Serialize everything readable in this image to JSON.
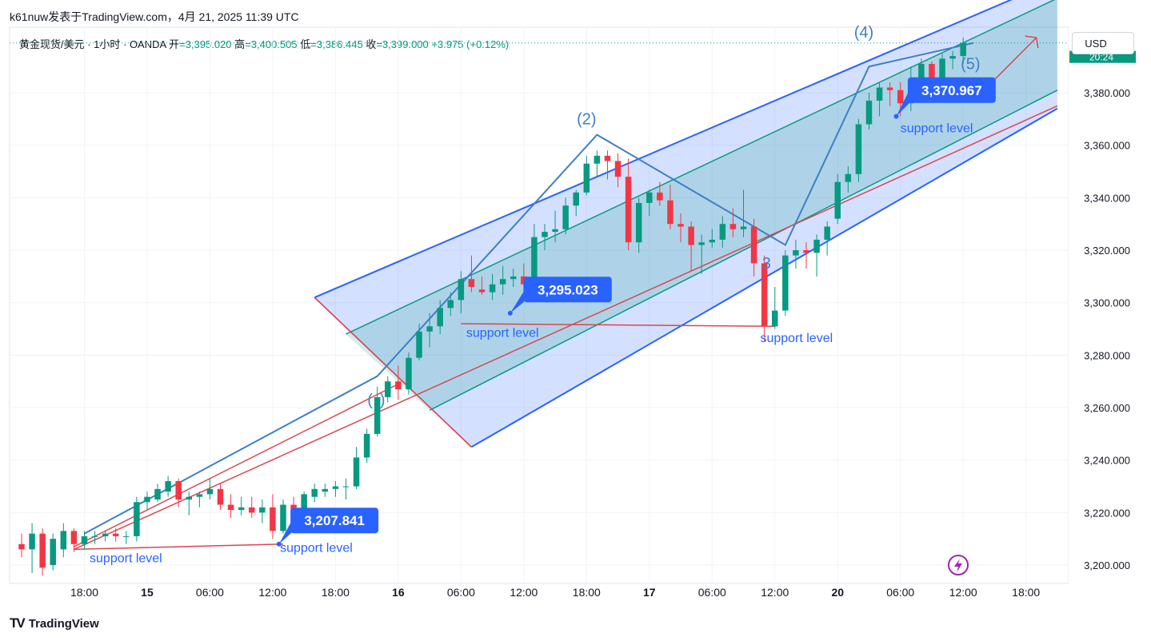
{
  "header": {
    "text": "k61nuw发表于TradingView.com，4月 21, 2025 11:39 UTC"
  },
  "ohlc": {
    "symbol": "黄金现货/美元 · 1小时 · OANDA",
    "open_label": "开",
    "open": "=3,395.020",
    "high_label": "高",
    "high": "=3,400.505",
    "low_label": "低",
    "low": "=3,386.445",
    "close_label": "收",
    "close": "=3,399.000",
    "change": "+3.975 (+0.12%)"
  },
  "currency": "USD",
  "last_price_tag": "20:24",
  "footer": {
    "brand": "TradingView"
  },
  "colors": {
    "up": "#089981",
    "down": "#f23645",
    "channel_outer": "#2962ff",
    "channel_inner": "#089981",
    "wave": "#3d7fc4",
    "trend": "#d84652",
    "callout": "#2962ff"
  },
  "chart_data": {
    "type": "candlestick",
    "y_ticks": [
      3200,
      3220,
      3240,
      3260,
      3280,
      3300,
      3320,
      3340,
      3360,
      3380
    ],
    "y_tick_labels": [
      "3,200.000",
      "3,220.000",
      "3,240.000",
      "3,260.000",
      "3,280.000",
      "3,300.000",
      "3,320.000",
      "3,340.000",
      "3,360.000",
      "3,380.000"
    ],
    "ylim": [
      3193,
      3405
    ],
    "x_ticks": [
      {
        "label": "18:00",
        "bold": false,
        "pos": 6
      },
      {
        "label": "15",
        "bold": true,
        "pos": 12
      },
      {
        "label": "06:00",
        "bold": false,
        "pos": 18
      },
      {
        "label": "12:00",
        "bold": false,
        "pos": 24
      },
      {
        "label": "18:00",
        "bold": false,
        "pos": 30
      },
      {
        "label": "16",
        "bold": true,
        "pos": 36
      },
      {
        "label": "06:00",
        "bold": false,
        "pos": 42
      },
      {
        "label": "12:00",
        "bold": false,
        "pos": 48
      },
      {
        "label": "18:00",
        "bold": false,
        "pos": 54
      },
      {
        "label": "17",
        "bold": true,
        "pos": 60
      },
      {
        "label": "06:00",
        "bold": false,
        "pos": 66
      },
      {
        "label": "12:00",
        "bold": false,
        "pos": 72
      },
      {
        "label": "20",
        "bold": true,
        "pos": 78
      },
      {
        "label": "06:00",
        "bold": false,
        "pos": 84
      },
      {
        "label": "12:00",
        "bold": false,
        "pos": 90
      },
      {
        "label": "18:00",
        "bold": false,
        "pos": 96
      }
    ],
    "candles": [
      [
        3208,
        3212,
        3203,
        3206
      ],
      [
        3206,
        3216,
        3197,
        3212
      ],
      [
        3212,
        3214,
        3196,
        3199
      ],
      [
        3200,
        3212,
        3198,
        3210
      ],
      [
        3206,
        3216,
        3203,
        3213
      ],
      [
        3213,
        3214,
        3205,
        3208
      ],
      [
        3208,
        3213,
        3206,
        3211
      ],
      [
        3211,
        3213,
        3208,
        3211
      ],
      [
        3211,
        3213,
        3209,
        3212
      ],
      [
        3212,
        3214,
        3209,
        3211
      ],
      [
        3211,
        3213,
        3208,
        3211
      ],
      [
        3211,
        3226,
        3209,
        3224
      ],
      [
        3224,
        3228,
        3221,
        3226
      ],
      [
        3225,
        3231,
        3224,
        3229
      ],
      [
        3228,
        3234,
        3226,
        3232
      ],
      [
        3232,
        3233,
        3222,
        3225
      ],
      [
        3225,
        3228,
        3219,
        3226
      ],
      [
        3226,
        3228,
        3222,
        3227
      ],
      [
        3227,
        3233,
        3225,
        3229
      ],
      [
        3229,
        3231,
        3221,
        3223
      ],
      [
        3223,
        3227,
        3218,
        3221
      ],
      [
        3221,
        3226,
        3219,
        3222
      ],
      [
        3222,
        3226,
        3218,
        3220
      ],
      [
        3220,
        3225,
        3216,
        3222
      ],
      [
        3222,
        3227,
        3210,
        3213
      ],
      [
        3213,
        3225,
        3212,
        3223
      ],
      [
        3223,
        3226,
        3215,
        3220
      ],
      [
        3221,
        3228,
        3218,
        3227
      ],
      [
        3226,
        3231,
        3224,
        3229
      ],
      [
        3228,
        3231,
        3226,
        3229
      ],
      [
        3229,
        3232,
        3226,
        3230
      ],
      [
        3230,
        3233,
        3225,
        3230
      ],
      [
        3230,
        3245,
        3229,
        3241
      ],
      [
        3241,
        3252,
        3239,
        3250
      ],
      [
        3250,
        3268,
        3249,
        3264
      ],
      [
        3264,
        3272,
        3262,
        3270
      ],
      [
        3270,
        3276,
        3263,
        3267
      ],
      [
        3267,
        3281,
        3265,
        3279
      ],
      [
        3279,
        3292,
        3278,
        3289
      ],
      [
        3289,
        3296,
        3283,
        3291
      ],
      [
        3291,
        3301,
        3288,
        3298
      ],
      [
        3298,
        3304,
        3295,
        3301
      ],
      [
        3301,
        3312,
        3296,
        3309
      ],
      [
        3309,
        3318,
        3304,
        3306
      ],
      [
        3305,
        3310,
        3303,
        3304
      ],
      [
        3304,
        3311,
        3301,
        3307
      ],
      [
        3307,
        3314,
        3303,
        3309
      ],
      [
        3309,
        3313,
        3306,
        3310
      ],
      [
        3310,
        3315,
        3303,
        3307
      ],
      [
        3307,
        3330,
        3305,
        3325
      ],
      [
        3325,
        3330,
        3320,
        3327
      ],
      [
        3327,
        3335,
        3323,
        3328
      ],
      [
        3328,
        3340,
        3326,
        3337
      ],
      [
        3337,
        3343,
        3333,
        3342
      ],
      [
        3342,
        3356,
        3341,
        3353
      ],
      [
        3353,
        3358,
        3348,
        3356
      ],
      [
        3356,
        3358,
        3347,
        3354
      ],
      [
        3354,
        3357,
        3344,
        3348
      ],
      [
        3348,
        3355,
        3320,
        3323
      ],
      [
        3323,
        3340,
        3319,
        3338
      ],
      [
        3338,
        3343,
        3333,
        3342
      ],
      [
        3342,
        3346,
        3337,
        3339
      ],
      [
        3339,
        3345,
        3328,
        3330
      ],
      [
        3330,
        3334,
        3323,
        3329
      ],
      [
        3329,
        3331,
        3312,
        3322
      ],
      [
        3322,
        3326,
        3311,
        3323
      ],
      [
        3323,
        3328,
        3321,
        3324
      ],
      [
        3324,
        3333,
        3321,
        3330
      ],
      [
        3330,
        3336,
        3325,
        3328
      ],
      [
        3328,
        3343,
        3325,
        3329
      ],
      [
        3329,
        3332,
        3310,
        3315
      ],
      [
        3315,
        3318,
        3285,
        3291
      ],
      [
        3291,
        3306,
        3290,
        3297
      ],
      [
        3297,
        3320,
        3295,
        3318
      ],
      [
        3318,
        3324,
        3313,
        3320
      ],
      [
        3320,
        3323,
        3313,
        3319
      ],
      [
        3319,
        3326,
        3310,
        3324
      ],
      [
        3324,
        3331,
        3318,
        3329
      ],
      [
        3332,
        3349,
        3330,
        3346
      ],
      [
        3346,
        3352,
        3342,
        3349
      ],
      [
        3349,
        3370,
        3346,
        3368
      ],
      [
        3368,
        3380,
        3366,
        3377
      ],
      [
        3377,
        3384,
        3371,
        3382
      ],
      [
        3382,
        3384,
        3375,
        3381
      ],
      [
        3381,
        3384,
        3371,
        3376
      ],
      [
        3376,
        3390,
        3373,
        3381
      ],
      [
        3383,
        3393,
        3381,
        3391
      ],
      [
        3391,
        3392,
        3383,
        3384
      ],
      [
        3384,
        3395,
        3382,
        3393
      ],
      [
        3393,
        3396,
        3389,
        3394
      ],
      [
        3394,
        3401,
        3391,
        3399
      ]
    ],
    "channel_outer": {
      "upper": [
        [
          28,
          3302
        ],
        [
          99,
          3423
        ]
      ],
      "lower": [
        [
          43,
          3245
        ],
        [
          99,
          3374
        ]
      ],
      "cap_left": [
        [
          28,
          3302
        ],
        [
          43,
          3245
        ]
      ]
    },
    "channel_inner": {
      "upper": [
        [
          31,
          3288
        ],
        [
          99,
          3416
        ]
      ],
      "lower": [
        [
          39,
          3259
        ],
        [
          99,
          3381
        ]
      ]
    },
    "trend_line": [
      [
        5,
        3206
      ],
      [
        99,
        3375
      ]
    ],
    "trend_lines_left": [
      [
        [
          5,
          3207
        ],
        [
          36,
          3269
        ]
      ],
      [
        [
          28,
          3302
        ],
        [
          43,
          3245
        ]
      ]
    ],
    "wave_lines": [
      [
        [
          6,
          3212
        ],
        [
          34,
          3272
        ],
        [
          55,
          3364
        ],
        [
          73,
          3322
        ],
        [
          81,
          3390
        ],
        [
          91,
          3399
        ]
      ]
    ],
    "support_lines": [
      [
        [
          5,
          3206
        ],
        [
          25,
          3208
        ]
      ],
      [
        [
          42,
          3292
        ],
        [
          72,
          3291
        ]
      ]
    ],
    "target_arrow": [
      [
        92,
        3381
      ],
      [
        97,
        3401
      ]
    ],
    "wave_labels": [
      {
        "text": "(2)",
        "pos": 54,
        "price": 3368
      },
      {
        "text": "(4)",
        "pos": 80.5,
        "price": 3401
      },
      {
        "text": "(5)",
        "pos": 90.7,
        "price": 3389
      },
      {
        "text": "(",
        "pos": 33.3,
        "price": 3261
      },
      {
        "text": ")",
        "pos": 34.5,
        "price": 3261
      },
      {
        "text": "3",
        "pos": 71.2,
        "price": 3313
      }
    ],
    "support_labels": [
      {
        "text": "support level",
        "pos": 6.5,
        "price": 3201
      },
      {
        "text": "support level",
        "pos": 24.7,
        "price": 3205
      },
      {
        "text": "support level",
        "pos": 42.5,
        "price": 3287
      },
      {
        "text": "support level",
        "pos": 70.6,
        "price": 3285
      },
      {
        "text": "support level",
        "pos": 84,
        "price": 3365
      }
    ],
    "callouts": [
      {
        "text": "3,207.841",
        "pos": 24.6,
        "price": 3208,
        "box_pos": 25.7,
        "box_price": 3217
      },
      {
        "text": "3,295.023",
        "pos": 46.7,
        "price": 3296,
        "box_pos": 48,
        "box_price": 3305
      },
      {
        "text": "3,370.967",
        "pos": 83.6,
        "price": 3371,
        "box_pos": 84.7,
        "box_price": 3381
      }
    ]
  }
}
